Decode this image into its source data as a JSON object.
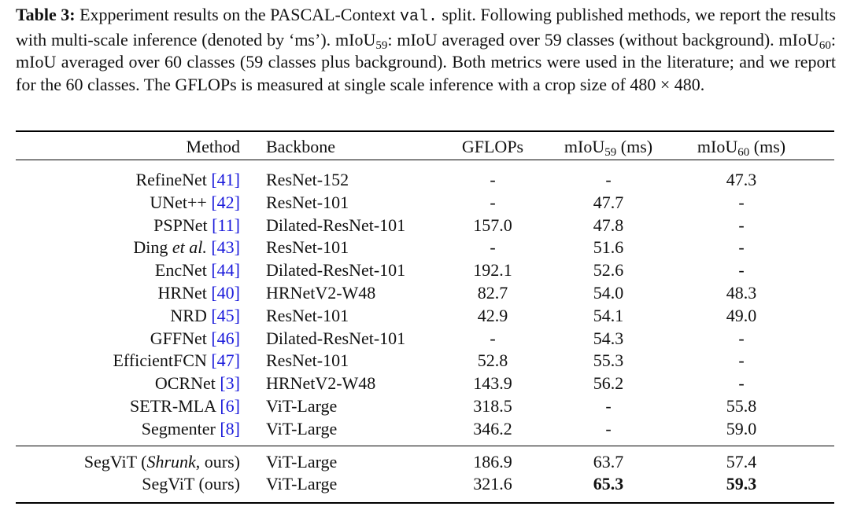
{
  "caption": {
    "parts": [
      "Table 3:",
      " Expperiment results on the PASCAL-Context ",
      "val.",
      " split. Following published methods, we report the results with multi-scale inference (denoted by ‘ms’). mIoU",
      "59",
      ": mIoU averaged over 59 classes (without background). mIoU",
      "60",
      ": mIoU averaged over 60 classes (59 classes plus background). Both metrics were used in the literature; and we report for the 60 classes. The GFLOPs is measured at single scale inference with a crop size of 480 × 480."
    ]
  },
  "table": {
    "header": [
      {
        "text": "Method"
      },
      {
        "text": "Backbone"
      },
      {
        "text": "GFLOPs"
      },
      {
        "text": "mIoU",
        "sub": "59",
        "suffix": " (ms)"
      },
      {
        "text": "mIoU",
        "sub": "60",
        "suffix": " (ms)"
      }
    ],
    "groups": [
      [
        {
          "method": [
            {
              "t": "RefineNet "
            },
            {
              "t": "[41]",
              "style": "ref"
            }
          ],
          "backbone": "ResNet-152",
          "gflops": "-",
          "miou59": "-",
          "miou60": "47.3"
        },
        {
          "method": [
            {
              "t": "UNet++ "
            },
            {
              "t": "[42]",
              "style": "ref"
            }
          ],
          "backbone": "ResNet-101",
          "gflops": "-",
          "miou59": "47.7",
          "miou60": "-"
        },
        {
          "method": [
            {
              "t": "PSPNet "
            },
            {
              "t": "[11]",
              "style": "ref"
            }
          ],
          "backbone": "Dilated-ResNet-101",
          "gflops": "157.0",
          "miou59": "47.8",
          "miou60": "-"
        },
        {
          "method": [
            {
              "t": "Ding "
            },
            {
              "t": "et al.",
              "style": "italic"
            },
            {
              "t": " "
            },
            {
              "t": "[43]",
              "style": "ref"
            }
          ],
          "backbone": "ResNet-101",
          "gflops": "-",
          "miou59": "51.6",
          "miou60": "-"
        },
        {
          "method": [
            {
              "t": "EncNet "
            },
            {
              "t": "[44]",
              "style": "ref"
            }
          ],
          "backbone": "Dilated-ResNet-101",
          "gflops": "192.1",
          "miou59": "52.6",
          "miou60": "-"
        },
        {
          "method": [
            {
              "t": "HRNet "
            },
            {
              "t": "[40]",
              "style": "ref"
            }
          ],
          "backbone": "HRNetV2-W48",
          "gflops": "82.7",
          "miou59": "54.0",
          "miou60": "48.3"
        },
        {
          "method": [
            {
              "t": "NRD "
            },
            {
              "t": "[45]",
              "style": "ref"
            }
          ],
          "backbone": "ResNet-101",
          "gflops": "42.9",
          "miou59": "54.1",
          "miou60": "49.0"
        },
        {
          "method": [
            {
              "t": "GFFNet "
            },
            {
              "t": "[46]",
              "style": "ref"
            }
          ],
          "backbone": "Dilated-ResNet-101",
          "gflops": "-",
          "miou59": "54.3",
          "miou60": "-"
        },
        {
          "method": [
            {
              "t": "EfficientFCN "
            },
            {
              "t": "[47]",
              "style": "ref"
            }
          ],
          "backbone": "ResNet-101",
          "gflops": "52.8",
          "miou59": "55.3",
          "miou60": "-"
        },
        {
          "method": [
            {
              "t": "OCRNet "
            },
            {
              "t": "[3]",
              "style": "ref"
            }
          ],
          "backbone": "HRNetV2-W48",
          "gflops": "143.9",
          "miou59": "56.2",
          "miou60": "-"
        },
        {
          "method": [
            {
              "t": "SETR-MLA "
            },
            {
              "t": "[6]",
              "style": "ref"
            }
          ],
          "backbone": "ViT-Large",
          "gflops": "318.5",
          "miou59": "-",
          "miou60": "55.8"
        },
        {
          "method": [
            {
              "t": "Segmenter "
            },
            {
              "t": "[8]",
              "style": "ref"
            }
          ],
          "backbone": "ViT-Large",
          "gflops": "346.2",
          "miou59": "-",
          "miou60": "59.0"
        }
      ],
      [
        {
          "method": [
            {
              "t": "SegViT ("
            },
            {
              "t": "Shrunk",
              "style": "italic"
            },
            {
              "t": ", ours)"
            }
          ],
          "backbone": "ViT-Large",
          "gflops": "186.9",
          "miou59": "63.7",
          "miou60": "57.4"
        },
        {
          "method": [
            {
              "t": "SegViT (ours)"
            }
          ],
          "backbone": "ViT-Large",
          "gflops": "321.6",
          "miou59": "65.3",
          "miou60": "59.3",
          "bold": [
            "miou59",
            "miou60"
          ]
        }
      ]
    ]
  }
}
